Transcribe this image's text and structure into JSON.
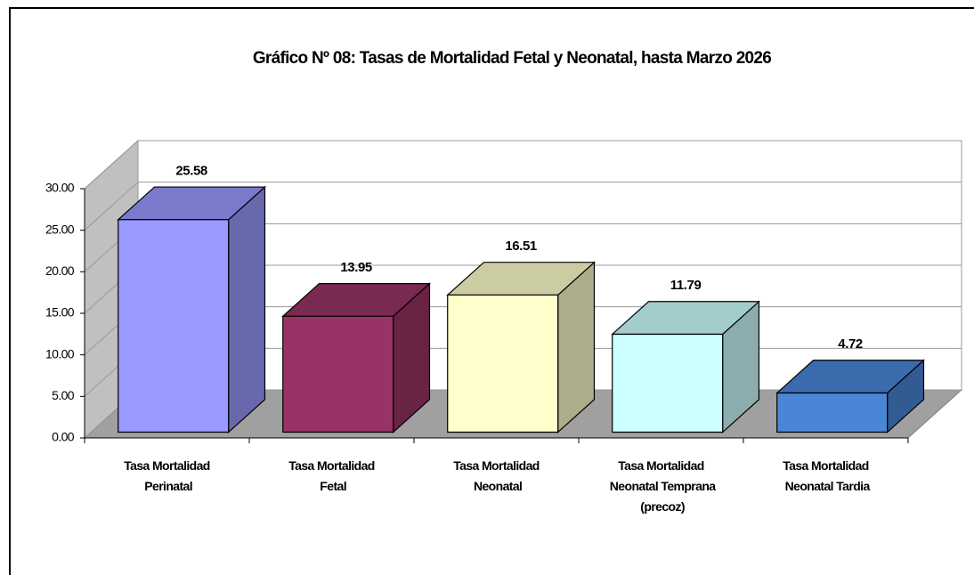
{
  "chart_data": {
    "type": "bar3d",
    "title": "Gráfico Nº 08: Tasas de Mortalidad Fetal y Neonatal, hasta Marzo 2026",
    "categories": [
      "Tasa Mortalidad Perinatal",
      "Tasa Mortalidad Fetal",
      "Tasa Mortalidad Neonatal",
      "Tasa Mortalidad Neonatal Temprana (precoz)",
      "Tasa Mortalidad Neonatal Tardia"
    ],
    "values": [
      25.58,
      13.95,
      16.51,
      11.79,
      4.72
    ],
    "colors": [
      "#9999ff",
      "#993366",
      "#ffffcc",
      "#ccffff",
      "#4a86d8"
    ],
    "ylim": [
      0,
      30
    ],
    "yticks": [
      {
        "value": 0,
        "label": "0.00"
      },
      {
        "value": 5,
        "label": "5.00"
      },
      {
        "value": 10,
        "label": "10.00"
      },
      {
        "value": 15,
        "label": "15.00"
      },
      {
        "value": 20,
        "label": "20.00"
      },
      {
        "value": 25,
        "label": "25.00"
      },
      {
        "value": 30,
        "label": "30.00"
      }
    ],
    "grid": true
  }
}
